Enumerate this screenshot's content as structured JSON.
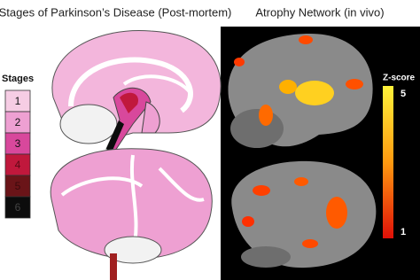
{
  "left_panel": {
    "title": "Stages of Parkinson’s Disease (Post-mortem)"
  },
  "right_panel": {
    "title": "Atrophy Network (in vivo)"
  },
  "stages_legend": {
    "title": "Stages",
    "items": [
      {
        "label": "1",
        "color": "#f6cde4",
        "text_color": "#111111"
      },
      {
        "label": "2",
        "color": "#eea0d2",
        "text_color": "#111111"
      },
      {
        "label": "3",
        "color": "#d8489c",
        "text_color": "#111111"
      },
      {
        "label": "4",
        "color": "#c0183c",
        "text_color": "#5a0a14"
      },
      {
        "label": "5",
        "color": "#6a1418",
        "text_color": "#3a0a0c"
      },
      {
        "label": "6",
        "color": "#0c0c0c",
        "text_color": "#444444"
      }
    ]
  },
  "colorbar": {
    "title": "Z-score",
    "max": 5,
    "min": 1
  }
}
